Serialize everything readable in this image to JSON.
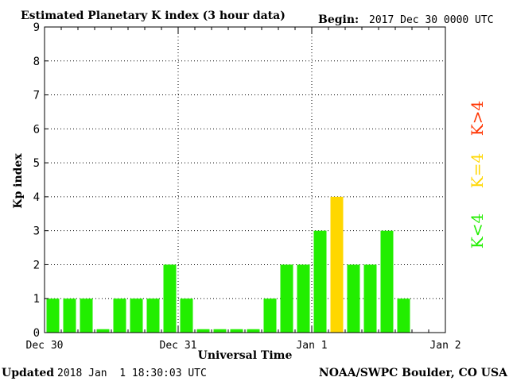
{
  "header": {
    "title": "Estimated Planetary K index (3 hour data)",
    "begin_label": "Begin:",
    "begin_value": "2017 Dec 30 0000 UTC"
  },
  "footer": {
    "updated_label": "Updated",
    "updated_value": "2018 Jan  1 18:30:03 UTC",
    "source": "NOAA/SWPC Boulder, CO USA"
  },
  "legend": {
    "k_greater": "K>4",
    "k_equal": "K=4",
    "k_less": "K<4"
  },
  "colors": {
    "k_less": "#22ee00",
    "k_equal": "#ffd700",
    "k_greater": "#ff3300",
    "grid": "#000000",
    "axis": "#000000",
    "bar_border": "#ffffff"
  },
  "chart_data": {
    "type": "bar",
    "title": "Estimated Planetary K index (3 hour data)",
    "xlabel": "Universal Time",
    "ylabel": "Kp index",
    "ylim": [
      0,
      9
    ],
    "yticks": [
      0,
      1,
      2,
      3,
      4,
      5,
      6,
      7,
      8,
      9
    ],
    "xticks": [
      "Dec 30",
      "Dec 31",
      "Jan 1",
      "Jan 2"
    ],
    "grid": true,
    "values": [
      1,
      1,
      1,
      0.1,
      1,
      1,
      1,
      2,
      1,
      0.1,
      0.1,
      0.1,
      0.1,
      1,
      2,
      2,
      3,
      4,
      2,
      2,
      3,
      1
    ]
  }
}
